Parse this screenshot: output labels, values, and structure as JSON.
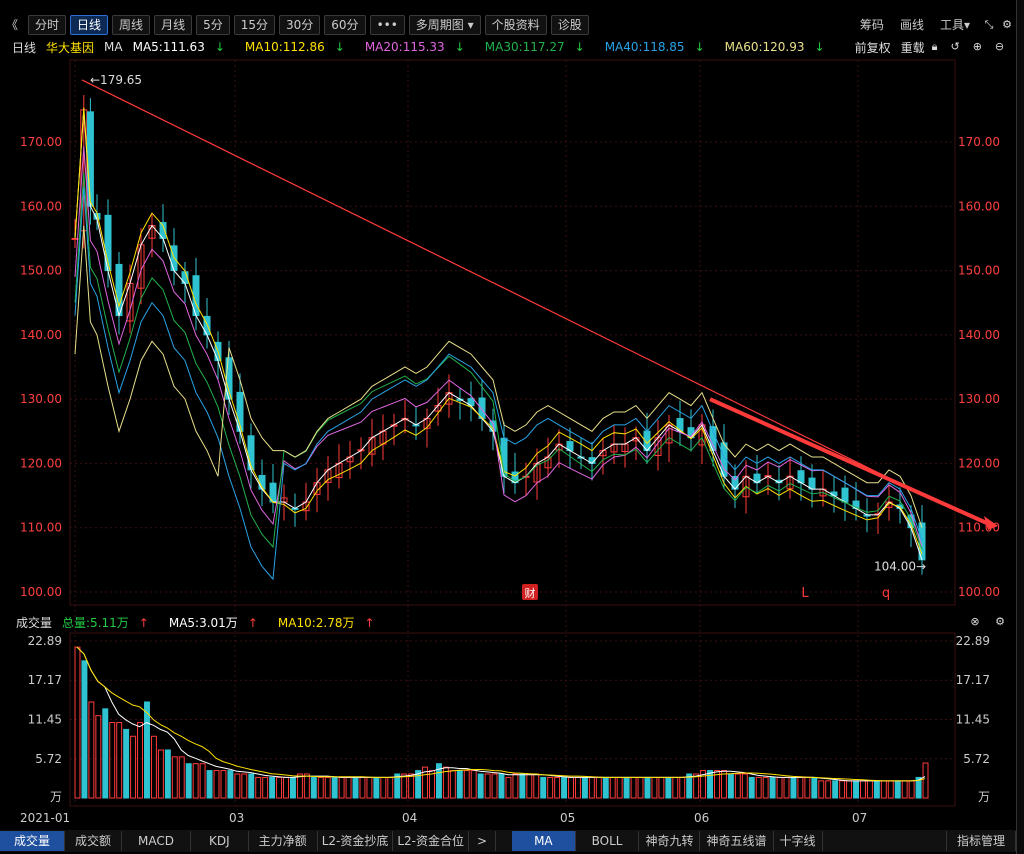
{
  "toolbar": {
    "nav": "《",
    "periods": [
      "分时",
      "日线",
      "周线",
      "月线",
      "5分",
      "15分",
      "30分",
      "60分"
    ],
    "active_period": "日线",
    "more": "•••",
    "multi_period": "多周期图",
    "stock_info": "个股资料",
    "diagnose": "诊股",
    "right": [
      "筹码",
      "画线",
      "工具"
    ]
  },
  "indicator_bar": {
    "period": "日线",
    "stock_name": "华大基因",
    "ma_label": "MA",
    "ma": [
      {
        "label": "MA5:111.63",
        "color": "#ffffff"
      },
      {
        "label": "MA10:112.86",
        "color": "#ffe100"
      },
      {
        "label": "MA20:115.33",
        "color": "#e066e0"
      },
      {
        "label": "MA30:117.27",
        "color": "#22b14c"
      },
      {
        "label": "MA40:118.85",
        "color": "#29a3e6"
      },
      {
        "label": "MA60:120.93",
        "color": "#e8e08a"
      }
    ],
    "arrow": "↓",
    "fq": "前复权",
    "reload": "重载"
  },
  "chart_data": {
    "type": "candlestick",
    "price_axis": [
      "170.00",
      "160.00",
      "150.00",
      "140.00",
      "130.00",
      "120.00",
      "110.00",
      "100.00"
    ],
    "ylim": [
      100,
      180
    ],
    "high_label": "179.65",
    "low_label": "104.00",
    "months": [
      "2021-01",
      "03",
      "04",
      "05",
      "06",
      "07"
    ],
    "markers": [
      "财",
      "L",
      "q"
    ],
    "volume_axis": [
      "22.89",
      "17.17",
      "11.45",
      "5.72",
      "万"
    ],
    "volume_ylim": [
      0,
      22.89
    ]
  },
  "volume_bar": {
    "title": "成交量",
    "total": "总量:5.11万",
    "ma5": "MA5:3.01万",
    "ma10": "MA10:2.78万",
    "arrow": "↑"
  },
  "bottom_tabs": [
    "成交量",
    "成交额",
    "MACD",
    "KDJ",
    "主力净额",
    "L2-资金抄底",
    "L2-资金合位",
    ">",
    "MA",
    "BOLL",
    "神奇九转",
    "神奇五线谱",
    "十字线"
  ],
  "active_tab": "成交量",
  "bottom_right": "指标管理",
  "colors": {
    "up": "#ff3b3b",
    "down": "#2fc3d1",
    "trend": "#ff3a3a",
    "grid": "#3a1010"
  }
}
